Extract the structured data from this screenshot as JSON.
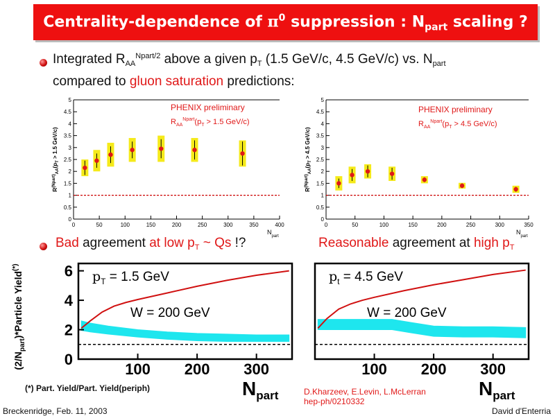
{
  "title": {
    "pre": "Centrality-dependence of ",
    "pi": "π",
    "pi_sup": "0",
    "mid": " suppression : N",
    "sub": "part",
    "post": " scaling ?"
  },
  "bullet1": {
    "line1_a": "Integrated R",
    "line1_aa": "AA",
    "line1_sup": "Npart/2",
    "line1_b": " above a given p",
    "line1_t": "T",
    "line1_c": " (1.5 GeV/c, 4.5 GeV/c) vs. N",
    "line1_part": "part",
    "line2_a": "compared to ",
    "line2_red": "gluon saturation",
    "line2_b": " predictions:"
  },
  "bullet2": {
    "bad": "Bad",
    "agreement": " agreement ",
    "at_low": "at low p",
    "t": "T",
    "qs": " ~ Qs",
    "rest": " !?",
    "reasonable": "Reasonable",
    "agreement2": " agreement at ",
    "high": "high p",
    "t2": "T"
  },
  "colors": {
    "title_bg": "#ee1010",
    "accent_red": "#e01818",
    "band": "#1ee6ee",
    "box": "#f5ea1a",
    "theory": "#d01010"
  },
  "chart_data": [
    {
      "type": "scatter",
      "annotation": "PHENIX preliminary",
      "annotation2": {
        "a": "R",
        "aa": "AA",
        "sup": "Npart",
        "b": "(p",
        "t": "T",
        "c": " > 1.5 GeV/c)"
      },
      "ylabel_tag": {
        "a": "R",
        "sup": "(Npart)",
        "sub": "AA",
        "b": "(p",
        "t": "T",
        "c": " > 1.5 GeV/c)"
      },
      "xlabel": {
        "a": "N",
        "sub": "part"
      },
      "xlim": [
        0,
        400
      ],
      "ylim": [
        0,
        5
      ],
      "x_ticks": [
        "0",
        "50",
        "100",
        "150",
        "200",
        "250",
        "300",
        "350",
        "400"
      ],
      "y_ticks": [
        "0",
        "0.5",
        "1",
        "1.5",
        "2",
        "2.5",
        "3",
        "3.5",
        "4",
        "4.5",
        "5"
      ],
      "reference_line": 1,
      "x": [
        22,
        45,
        72,
        114,
        170,
        235,
        328
      ],
      "y": [
        2.15,
        2.45,
        2.7,
        2.9,
        2.95,
        2.9,
        2.75
      ],
      "stat_err": [
        0.3,
        0.3,
        0.35,
        0.35,
        0.4,
        0.4,
        0.5
      ],
      "sys_err": [
        0.35,
        0.45,
        0.5,
        0.5,
        0.55,
        0.5,
        0.55
      ]
    },
    {
      "type": "scatter",
      "annotation": "PHENIX preliminary",
      "annotation2": {
        "a": "R",
        "aa": "AA",
        "sup": "Npart",
        "b": "(p",
        "t": "T",
        "c": " > 4.5 GeV/c)"
      },
      "ylabel_tag": {
        "a": "R",
        "sup": "(Npart)",
        "sub": "AA",
        "b": "(p",
        "t": "T",
        "c": " > 4.5 GeV/c)"
      },
      "xlabel": {
        "a": "N",
        "sub": "part"
      },
      "xlim": [
        0,
        350
      ],
      "ylim": [
        0,
        5
      ],
      "x_ticks": [
        "0",
        "50",
        "100",
        "150",
        "200",
        "250",
        "300",
        "350"
      ],
      "y_ticks": [
        "0",
        "0.5",
        "1",
        "1.5",
        "2",
        "2.5",
        "3",
        "3.5",
        "4",
        "4.5",
        "5"
      ],
      "reference_line": 1,
      "x": [
        22,
        45,
        72,
        114,
        170,
        235,
        328
      ],
      "y": [
        1.5,
        1.85,
        2.0,
        1.9,
        1.65,
        1.4,
        1.25
      ],
      "stat_err": [
        0.2,
        0.25,
        0.25,
        0.25,
        0.1,
        0.1,
        0.1
      ],
      "sys_err": [
        0.3,
        0.35,
        0.3,
        0.3,
        0.15,
        0.12,
        0.15
      ]
    },
    {
      "type": "line",
      "pt_label": {
        "a": "p",
        "sub": "T",
        "b": " = 1.5 GeV"
      },
      "w_label": "W = 200 GeV",
      "ylabel": {
        "a": "(2/N",
        "sub": "part",
        "b": ")*Particle Yield",
        "sup": "(*)"
      },
      "xlabel": {
        "a": "N",
        "sub": "part"
      },
      "xlim": [
        0,
        360
      ],
      "ylim": [
        0,
        6.5
      ],
      "x_ticks": [
        "100",
        "200",
        "300"
      ],
      "y_ticks": [
        "0",
        "2",
        "4",
        "6"
      ],
      "reference_line": 1,
      "theory": {
        "x": [
          5,
          20,
          40,
          60,
          80,
          100,
          150,
          200,
          250,
          300,
          355
        ],
        "y": [
          2.1,
          2.6,
          3.2,
          3.6,
          3.85,
          4.05,
          4.5,
          4.95,
          5.35,
          5.7,
          6.0
        ]
      },
      "band": {
        "x": [
          5,
          20,
          50,
          100,
          150,
          200,
          250,
          300,
          355
        ],
        "low": [
          1.95,
          1.85,
          1.7,
          1.5,
          1.35,
          1.25,
          1.2,
          1.2,
          1.2
        ],
        "high": [
          2.6,
          2.45,
          2.25,
          2.0,
          1.85,
          1.75,
          1.7,
          1.65,
          1.65
        ]
      }
    },
    {
      "type": "line",
      "pt_label": {
        "a": "p",
        "sub": "t",
        "b": " = 4.5 GeV"
      },
      "w_label": "W = 200 GeV",
      "xlabel": {
        "a": "N",
        "sub": "part"
      },
      "xlim": [
        0,
        360
      ],
      "ylim": [
        0,
        6.5
      ],
      "x_ticks": [
        "100",
        "200",
        "300"
      ],
      "y_ticks": [],
      "reference_line": 1,
      "theory": {
        "x": [
          5,
          20,
          40,
          60,
          80,
          100,
          150,
          200,
          250,
          300,
          355
        ],
        "y": [
          2.1,
          2.75,
          3.4,
          3.75,
          4.0,
          4.2,
          4.65,
          5.05,
          5.4,
          5.75,
          6.05
        ]
      },
      "band": {
        "x": [
          5,
          50,
          100,
          130,
          160,
          200,
          250,
          300,
          355
        ],
        "low": [
          2.0,
          2.0,
          2.0,
          2.0,
          1.8,
          1.55,
          1.5,
          1.5,
          1.45
        ],
        "high": [
          2.7,
          2.7,
          2.7,
          2.7,
          2.5,
          2.25,
          2.2,
          2.2,
          2.15
        ]
      }
    }
  ],
  "footnote": "(*) Part. Yield/Part. Yield(periph)",
  "reference": {
    "line1": "D.Kharzeev, E.Levin, L.McLerran",
    "line2": "hep-ph/0210332"
  },
  "footer_left": "Breckenridge, Feb. 11, 2003",
  "footer_right": "David d'Enterria"
}
